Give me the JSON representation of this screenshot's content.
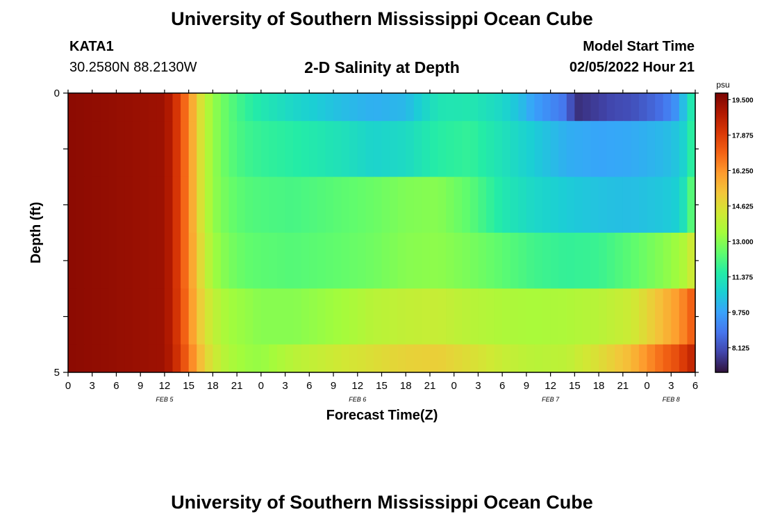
{
  "header": {
    "title": "University of Southern Mississippi Ocean Cube",
    "station_id": "KATA1",
    "coordinates": "30.2580N  88.2130W",
    "subtitle": "2-D Salinity at Depth",
    "model_start_label": "Model Start Time",
    "model_start_value": "02/05/2022 Hour 21"
  },
  "footer": {
    "title": "University of Southern Mississippi Ocean Cube"
  },
  "chart_data": {
    "type": "heatmap",
    "title": "2-D Salinity at Depth",
    "xlabel": "Forecast Time(Z)",
    "ylabel": "Depth (ft)",
    "x_start_hour": 0,
    "x_end_hour": 78,
    "x_tick_labels": [
      "0",
      "3",
      "6",
      "9",
      "12",
      "15",
      "18",
      "21",
      "0",
      "3",
      "6",
      "9",
      "12",
      "15",
      "18",
      "21",
      "0",
      "3",
      "6",
      "9",
      "12",
      "15",
      "18",
      "21",
      "0",
      "3",
      "6"
    ],
    "date_labels": [
      {
        "label": "FEB 5",
        "hour": 12
      },
      {
        "label": "FEB 6",
        "hour": 36
      },
      {
        "label": "FEB 7",
        "hour": 60
      },
      {
        "label": "FEB 8",
        "hour": 75
      }
    ],
    "y_tick_labels": [
      "0",
      "5"
    ],
    "ylim": [
      0,
      5
    ],
    "row_depth_ranges_ft": [
      [
        0,
        0.5
      ],
      [
        0.5,
        1.5
      ],
      [
        1.5,
        2.5
      ],
      [
        2.5,
        3.5
      ],
      [
        3.5,
        4.5
      ],
      [
        4.5,
        5
      ]
    ],
    "colorbar": {
      "unit": "psu",
      "min": 7.0,
      "max": 19.8,
      "tick_labels": [
        "19.500",
        "17.875",
        "16.250",
        "14.625",
        "13.000",
        "11.375",
        "9.750",
        "8.125"
      ],
      "tick_values": [
        19.5,
        17.875,
        16.25,
        14.625,
        13.0,
        11.375,
        9.75,
        8.125
      ],
      "palette": [
        "#30123b",
        "#4145ab",
        "#4675ed",
        "#39a2fc",
        "#1bcfd4",
        "#24eca6",
        "#61fc6c",
        "#a4fc3b",
        "#d1e834",
        "#f3c63a",
        "#fe9b2d",
        "#f36315",
        "#d93806",
        "#b11901",
        "#7a0403"
      ]
    },
    "series": [
      {
        "name": "row1",
        "hours": [
          0,
          12,
          13,
          14,
          15,
          16,
          17,
          18,
          20,
          22,
          24,
          28,
          34,
          38,
          42,
          46,
          50,
          54,
          56,
          58,
          62,
          63,
          64,
          66,
          68,
          70,
          72,
          74,
          76,
          77,
          78
        ],
        "values": [
          19.5,
          19.2,
          18.6,
          17.5,
          16.5,
          15.0,
          14.0,
          13.2,
          12.4,
          11.8,
          11.4,
          10.9,
          10.3,
          10.0,
          10.2,
          11.3,
          11.4,
          10.9,
          10.4,
          9.7,
          8.8,
          7.5,
          7.6,
          7.8,
          8.0,
          8.1,
          8.4,
          8.8,
          9.6,
          11.0,
          11.8
        ]
      },
      {
        "name": "row2",
        "hours": [
          0,
          12,
          13,
          14,
          15,
          16,
          17,
          18,
          20,
          22,
          24,
          28,
          34,
          38,
          42,
          46,
          50,
          54,
          58,
          62,
          66,
          70,
          74,
          76,
          77,
          78
        ],
        "values": [
          19.5,
          19.2,
          18.6,
          17.5,
          16.5,
          15.0,
          14.0,
          13.2,
          12.4,
          12.0,
          11.8,
          11.6,
          11.2,
          10.8,
          11.0,
          11.6,
          11.8,
          11.2,
          10.6,
          10.0,
          9.8,
          9.9,
          10.2,
          10.5,
          11.0,
          12.3
        ]
      },
      {
        "name": "row3",
        "hours": [
          0,
          12,
          13,
          14,
          15,
          16,
          17,
          18,
          20,
          22,
          24,
          28,
          34,
          38,
          42,
          46,
          50,
          54,
          58,
          62,
          66,
          70,
          74,
          76,
          77,
          78
        ],
        "values": [
          19.5,
          19.2,
          18.6,
          17.5,
          16.5,
          15.0,
          14.0,
          13.2,
          12.6,
          12.3,
          12.2,
          12.1,
          12.4,
          12.6,
          12.9,
          13.0,
          12.4,
          11.4,
          10.9,
          10.6,
          10.4,
          10.3,
          10.5,
          10.7,
          11.6,
          13.0
        ]
      },
      {
        "name": "row4",
        "hours": [
          0,
          12,
          13,
          14,
          15,
          16,
          17,
          18,
          20,
          22,
          24,
          28,
          34,
          38,
          42,
          46,
          50,
          54,
          58,
          62,
          66,
          70,
          74,
          76,
          77,
          78
        ],
        "values": [
          19.5,
          19.2,
          18.6,
          17.5,
          16.5,
          15.2,
          14.2,
          13.4,
          12.8,
          12.5,
          12.4,
          12.3,
          12.5,
          12.7,
          13.0,
          13.1,
          12.8,
          12.4,
          12.0,
          11.8,
          11.9,
          12.4,
          13.0,
          13.4,
          13.8,
          14.6
        ]
      },
      {
        "name": "row5",
        "hours": [
          0,
          12,
          13,
          14,
          15,
          16,
          17,
          18,
          20,
          22,
          24,
          28,
          34,
          38,
          42,
          46,
          50,
          54,
          58,
          62,
          66,
          70,
          72,
          74,
          76,
          77,
          78
        ],
        "values": [
          19.5,
          19.2,
          18.6,
          17.6,
          16.6,
          15.4,
          14.6,
          14.0,
          13.4,
          13.2,
          13.0,
          13.0,
          13.4,
          13.8,
          14.0,
          14.1,
          13.8,
          13.6,
          13.5,
          13.6,
          13.8,
          14.2,
          14.8,
          15.5,
          16.2,
          16.8,
          17.4
        ]
      },
      {
        "name": "row6",
        "hours": [
          0,
          12,
          13,
          14,
          15,
          16,
          17,
          18,
          20,
          22,
          24,
          28,
          34,
          38,
          42,
          46,
          50,
          54,
          58,
          62,
          66,
          70,
          72,
          74,
          76,
          77,
          78
        ],
        "values": [
          19.5,
          19.2,
          18.7,
          17.8,
          16.9,
          15.8,
          15.0,
          14.3,
          13.6,
          13.3,
          13.2,
          13.8,
          14.3,
          14.6,
          14.9,
          15.0,
          14.6,
          14.1,
          13.8,
          13.9,
          14.6,
          15.5,
          16.3,
          17.0,
          17.6,
          18.2,
          18.7
        ]
      }
    ]
  }
}
